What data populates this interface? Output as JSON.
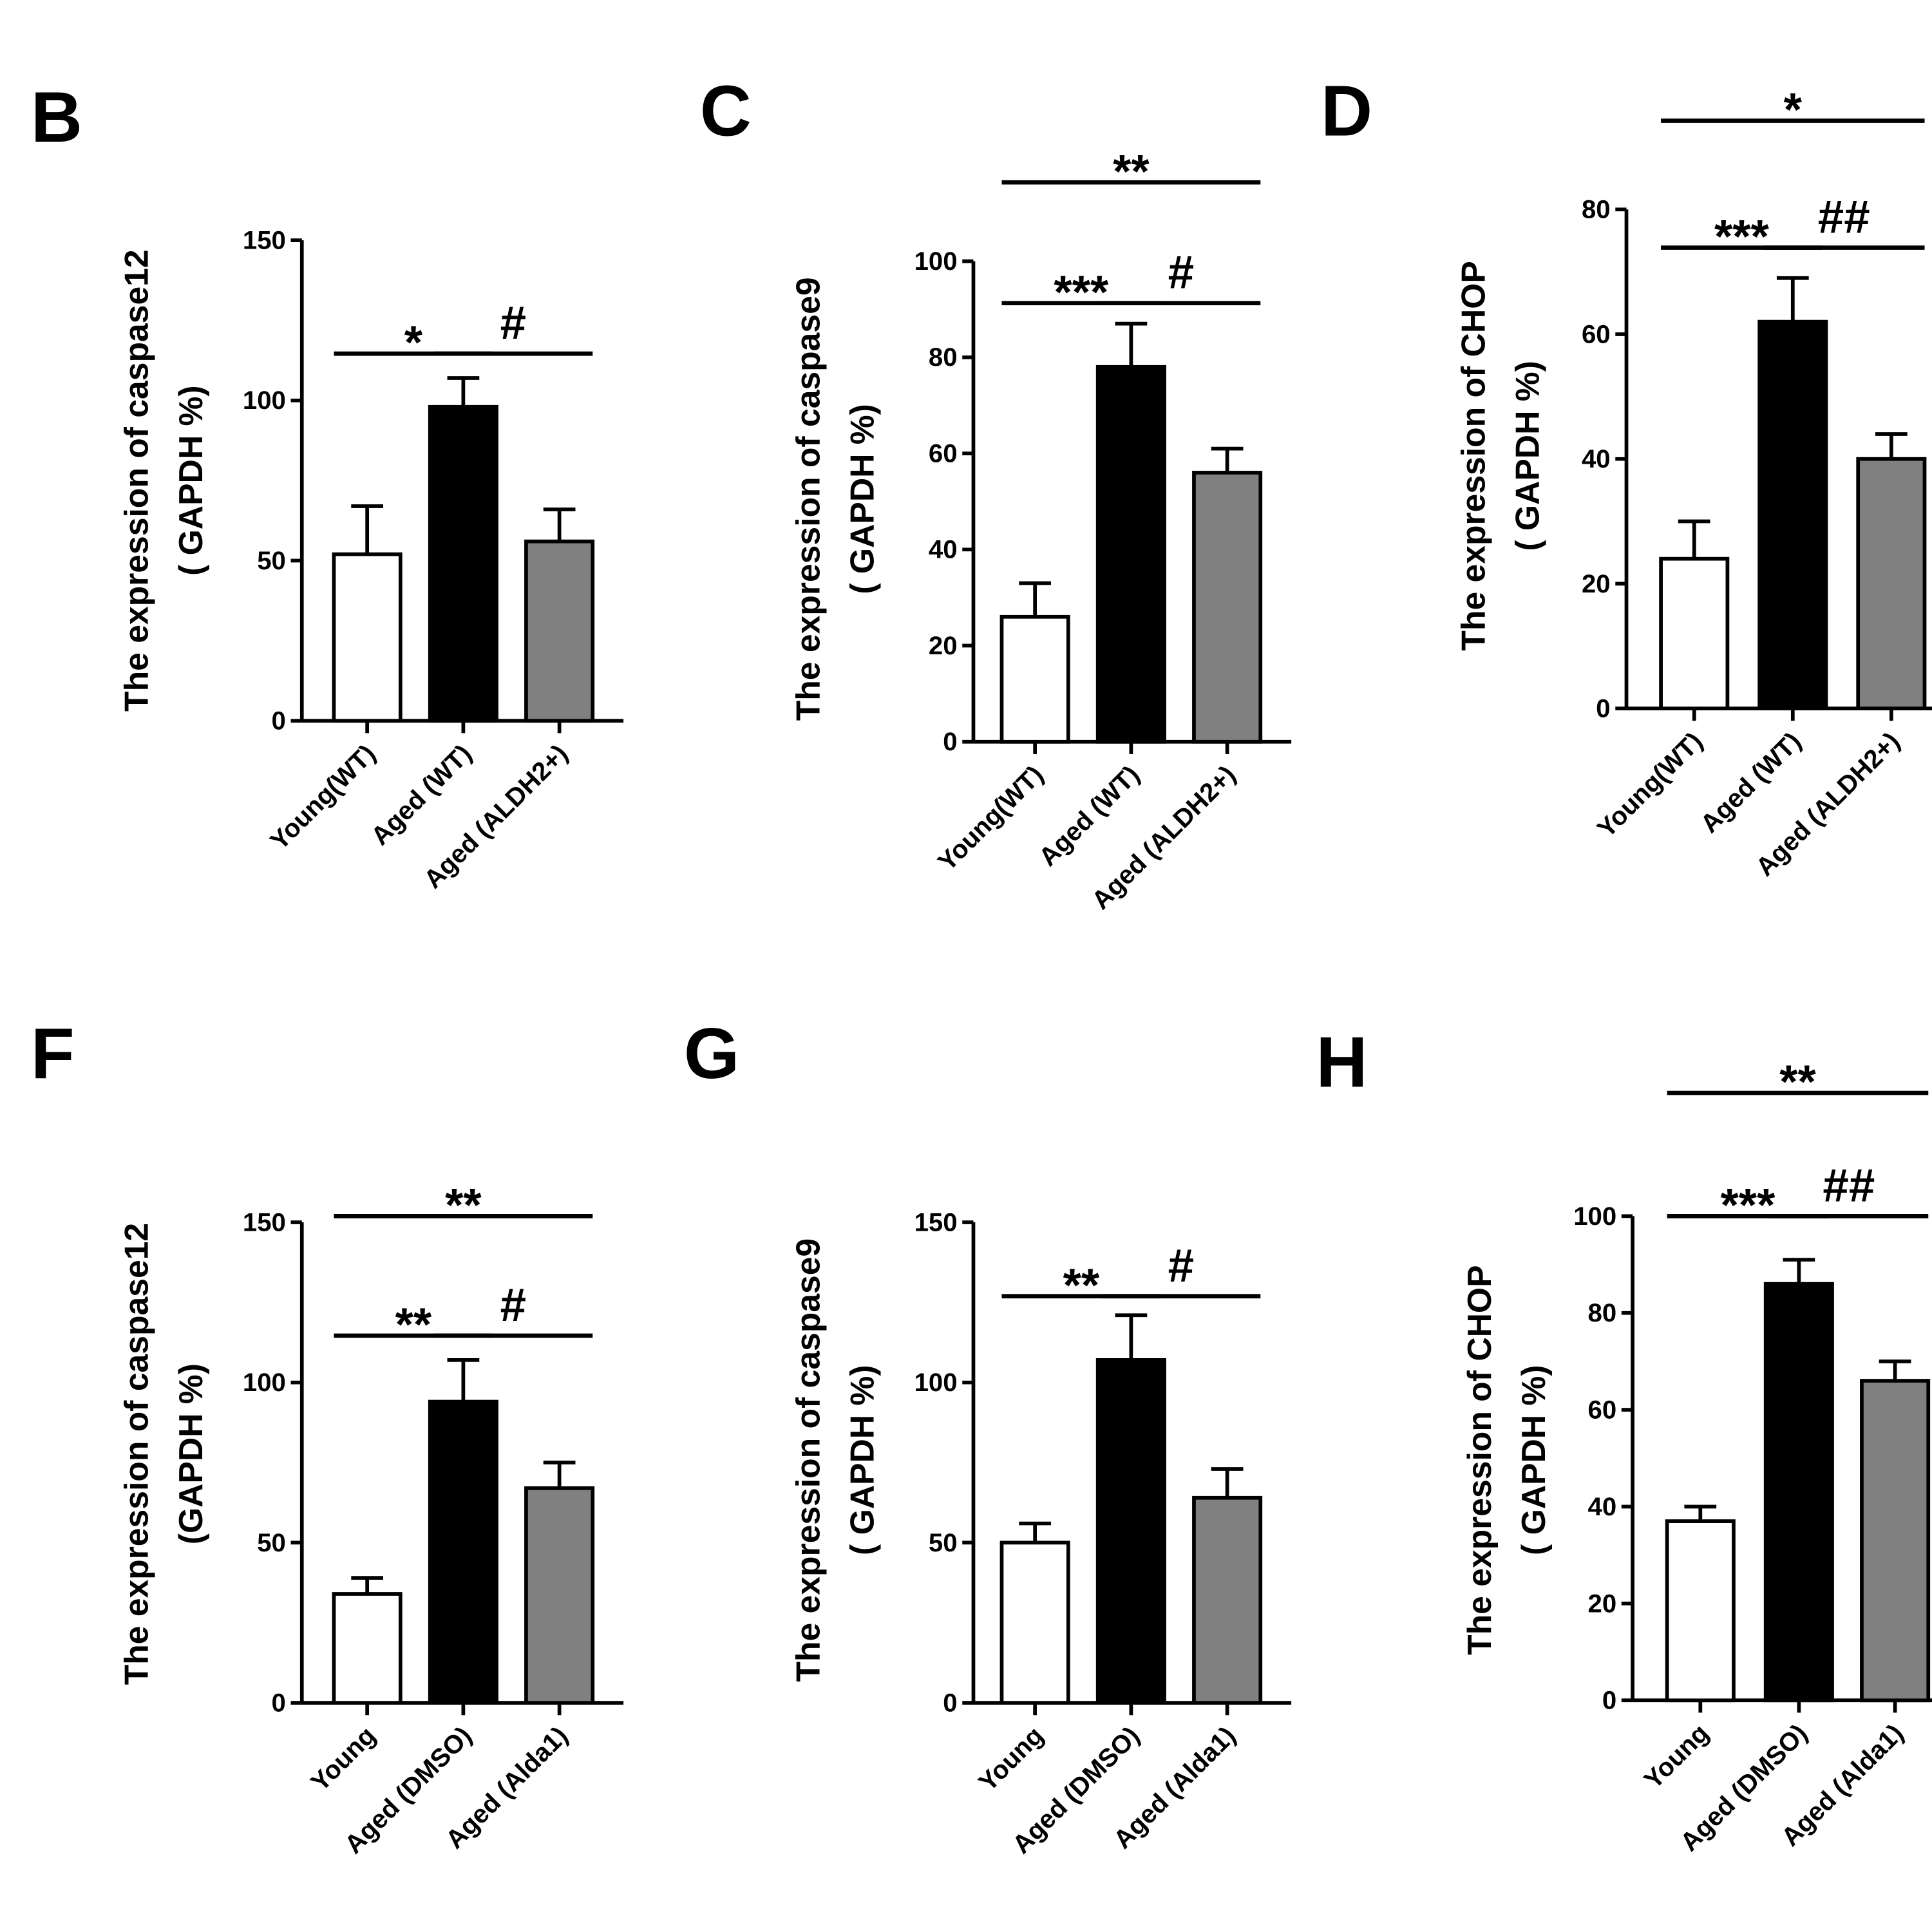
{
  "chart_data": [
    {
      "panel": "B",
      "type": "bar",
      "ylabel": [
        "The expression of caspase12",
        "( GAPDH %)"
      ],
      "ylim": [
        0,
        150
      ],
      "yticks": [
        "0",
        "50",
        "100",
        "150"
      ],
      "categories": [
        "Young(WT)",
        "Aged (WT)",
        "Aged (ALDH2+)"
      ],
      "values": [
        52,
        98,
        56
      ],
      "errors": [
        15,
        9,
        10
      ],
      "colors": [
        "#ffffff",
        "#000000",
        "#808080"
      ],
      "annotations": [
        {
          "text": "*",
          "from": 0,
          "to": 1
        },
        {
          "text": "#",
          "from": 1,
          "to": 2
        }
      ]
    },
    {
      "panel": "C",
      "type": "bar",
      "ylabel": [
        "The expression of caspase9",
        "( GAPDH %)"
      ],
      "ylim": [
        0,
        100
      ],
      "yticks": [
        "0",
        "20",
        "40",
        "60",
        "80",
        "100"
      ],
      "categories": [
        "Young(WT)",
        "Aged (WT)",
        "Aged (ALDH2+)"
      ],
      "values": [
        26,
        78,
        56
      ],
      "errors": [
        7,
        9,
        5
      ],
      "colors": [
        "#ffffff",
        "#000000",
        "#808080"
      ],
      "annotations": [
        {
          "text": "**",
          "from": 0,
          "to": 2
        },
        {
          "text": "***",
          "from": 0,
          "to": 1
        },
        {
          "text": "#",
          "from": 1,
          "to": 2
        }
      ]
    },
    {
      "panel": "D",
      "type": "bar",
      "ylabel": [
        "The expression of CHOP",
        "( GAPDH %)"
      ],
      "ylim": [
        0,
        80
      ],
      "yticks": [
        "0",
        "20",
        "40",
        "60",
        "80"
      ],
      "categories": [
        "Young(WT)",
        "Aged (WT)",
        "Aged (ALDH2+)"
      ],
      "values": [
        24,
        62,
        40
      ],
      "errors": [
        6,
        7,
        4
      ],
      "colors": [
        "#ffffff",
        "#000000",
        "#808080"
      ],
      "annotations": [
        {
          "text": "*",
          "from": 0,
          "to": 2
        },
        {
          "text": "***",
          "from": 0,
          "to": 1
        },
        {
          "text": "##",
          "from": 1,
          "to": 2
        }
      ]
    },
    {
      "panel": "F",
      "type": "bar",
      "ylabel": [
        "The expression of caspase12",
        "(GAPDH %)"
      ],
      "ylim": [
        0,
        150
      ],
      "yticks": [
        "0",
        "50",
        "100",
        "150"
      ],
      "categories": [
        "Young",
        "Aged (DMSO)",
        "Aged (Alda1)"
      ],
      "values": [
        34,
        94,
        67
      ],
      "errors": [
        5,
        13,
        8
      ],
      "colors": [
        "#ffffff",
        "#000000",
        "#808080"
      ],
      "annotations": [
        {
          "text": "**",
          "from": 0,
          "to": 2
        },
        {
          "text": "**",
          "from": 0,
          "to": 1
        },
        {
          "text": "#",
          "from": 1,
          "to": 2
        }
      ]
    },
    {
      "panel": "G",
      "type": "bar",
      "ylabel": [
        "The expression of caspase9",
        "( GAPDH %)"
      ],
      "ylim": [
        0,
        150
      ],
      "yticks": [
        "0",
        "50",
        "100",
        "150"
      ],
      "categories": [
        "Young",
        "Aged (DMSO)",
        "Aged (Alda1)"
      ],
      "values": [
        50,
        107,
        64
      ],
      "errors": [
        6,
        14,
        9
      ],
      "colors": [
        "#ffffff",
        "#000000",
        "#808080"
      ],
      "annotations": [
        {
          "text": "**",
          "from": 0,
          "to": 1
        },
        {
          "text": "#",
          "from": 1,
          "to": 2
        }
      ]
    },
    {
      "panel": "H",
      "type": "bar",
      "ylabel": [
        "The expression of CHOP",
        "( GAPDH %)"
      ],
      "ylim": [
        0,
        100
      ],
      "yticks": [
        "0",
        "20",
        "40",
        "60",
        "80",
        "100"
      ],
      "categories": [
        "Young",
        "Aged (DMSO)",
        "Aged (Alda1)"
      ],
      "values": [
        37,
        86,
        66
      ],
      "errors": [
        3,
        5,
        4
      ],
      "colors": [
        "#ffffff",
        "#000000",
        "#808080"
      ],
      "annotations": [
        {
          "text": "**",
          "from": 0,
          "to": 2
        },
        {
          "text": "***",
          "from": 0,
          "to": 1
        },
        {
          "text": "##",
          "from": 1,
          "to": 2
        }
      ]
    }
  ]
}
